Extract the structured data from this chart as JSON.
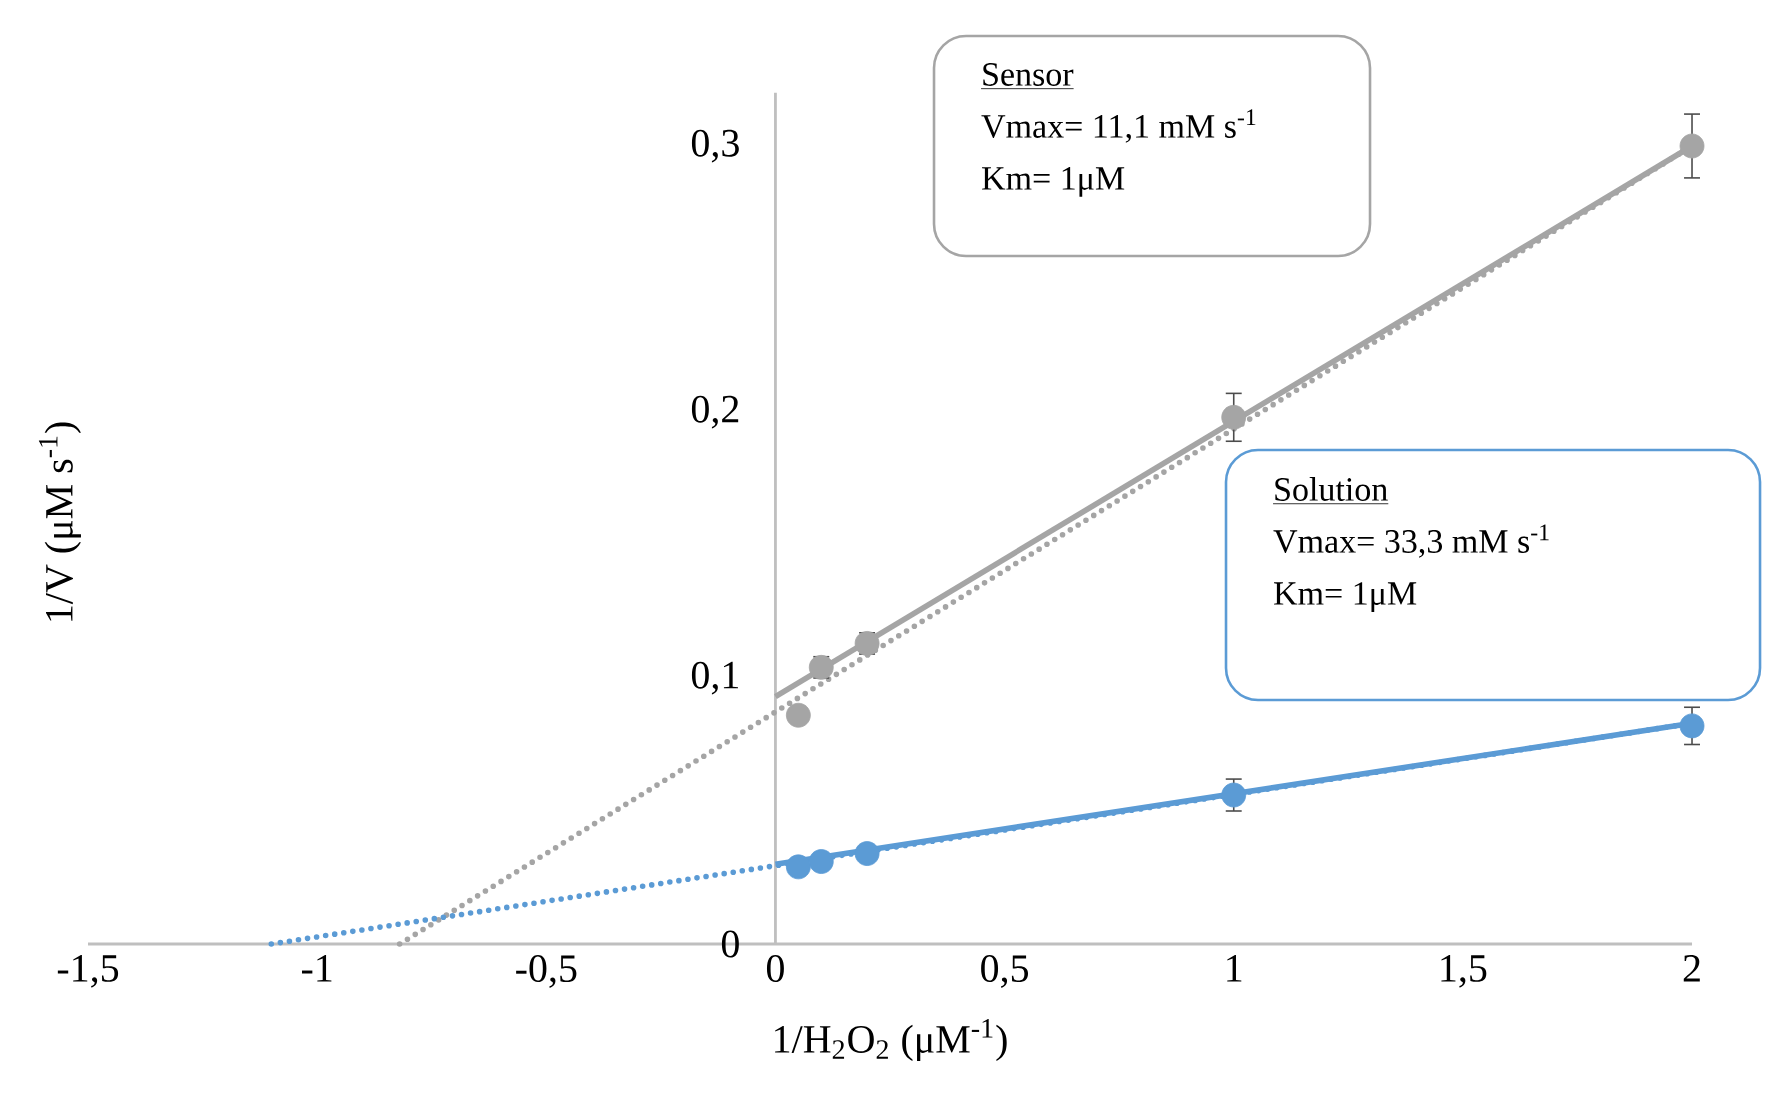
{
  "chart_data": {
    "type": "scatter",
    "xlabel": "1/H$_{2}$O$_{2}$ (μM$^{-1}$)",
    "ylabel": "1/V (μM s$^{-1}$)",
    "xlim": [
      -1.5,
      2
    ],
    "ylim": [
      0,
      0.32
    ],
    "xticks": [
      {
        "value": -1.5,
        "label": "-1,5"
      },
      -1,
      {
        "value": -0.5,
        "label": "-0,5"
      },
      0,
      {
        "value": 0.5,
        "label": "0,5"
      },
      1,
      {
        "value": 1.5,
        "label": "1,5"
      },
      2
    ],
    "yticks": [
      0,
      {
        "value": 0.1,
        "label": "0,1"
      },
      {
        "value": 0.2,
        "label": "0,2"
      },
      {
        "value": 0.3,
        "label": "0,3"
      }
    ],
    "grid": false,
    "series": [
      {
        "type": "line",
        "color": "#a5a5a5",
        "line_style": "dotted",
        "marker": "none",
        "x": [
          -0.82,
          2
        ],
        "values": [
          0,
          0.3
        ]
      },
      {
        "type": "line",
        "color": "#5b9bd5",
        "line_style": "dotted",
        "marker": "none",
        "x": [
          -1.1,
          2
        ],
        "values": [
          0,
          0.083
        ]
      },
      {
        "type": "line",
        "color": "#a5a5a5",
        "line_style": "solid",
        "marker": "none",
        "x": [
          0,
          2
        ],
        "values": [
          0.093,
          0.3
        ]
      },
      {
        "type": "line",
        "color": "#5b9bd5",
        "line_style": "solid",
        "marker": "none",
        "x": [
          0,
          2
        ],
        "values": [
          0.03,
          0.083
        ]
      },
      {
        "color": "#a5a5a5",
        "marker": "circle",
        "x": [
          0.05,
          0.1,
          0.2,
          1,
          2
        ],
        "values": [
          0.086,
          0.104,
          0.113,
          0.198,
          0.3
        ],
        "errors": [
          null,
          0.004,
          0.004,
          0.009,
          0.012
        ]
      },
      {
        "color": "#5b9bd5",
        "marker": "circle",
        "x": [
          0.05,
          0.1,
          0.2,
          1,
          2
        ],
        "values": [
          0.029,
          0.031,
          0.034,
          0.056,
          0.082
        ],
        "errors": [
          null,
          null,
          null,
          0.006,
          0.007
        ]
      }
    ],
    "annotations": [
      "Sensor",
      "Vmax= 11,1 mM s$^{-1}$",
      "Km= 1μM",
      "Solution",
      "Vmax= 33,3 mM s$^{-1}$",
      "Km= 1μM"
    ]
  }
}
